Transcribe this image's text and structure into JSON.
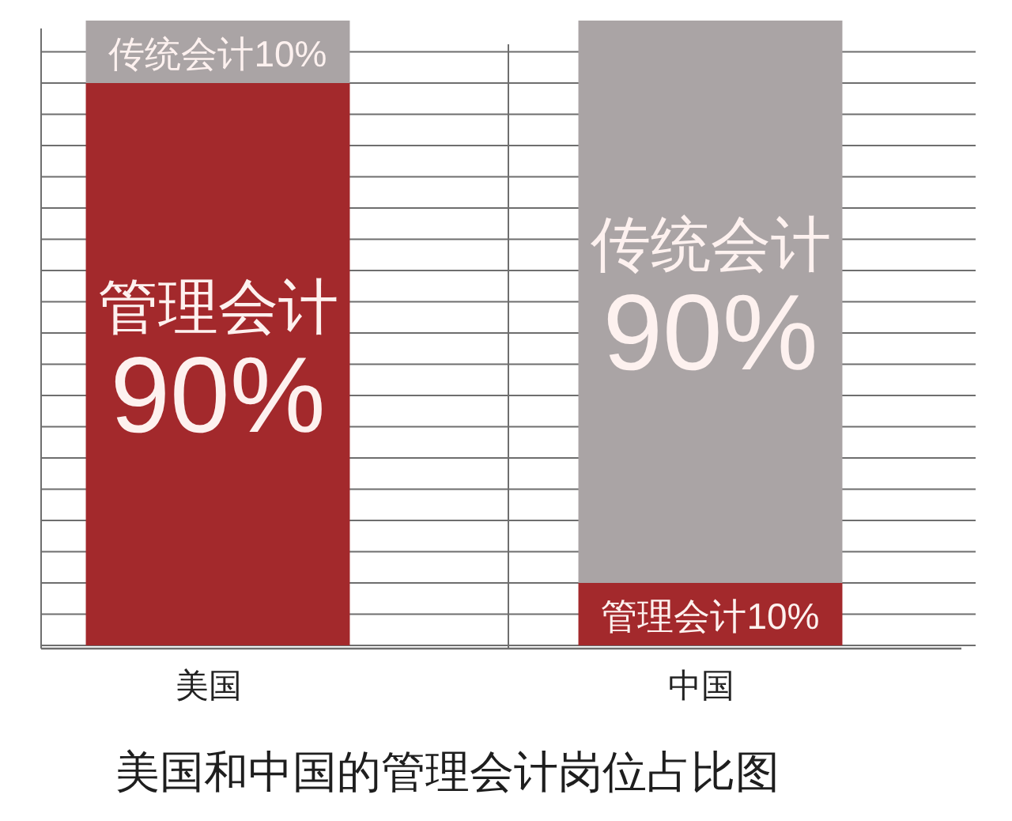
{
  "chart_data": {
    "type": "bar",
    "title": "美国和中国的管理会计岗位占比图",
    "categories": [
      "美国",
      "中国"
    ],
    "stacked": true,
    "series": [
      {
        "color": "#a3292c",
        "values": [
          90,
          10
        ],
        "value_labels": [
          "管理会计 90%",
          "管理会计10%"
        ]
      },
      {
        "color": "#aaa4a5",
        "values": [
          10,
          90
        ],
        "value_labels": [
          "传统会计10%",
          "传统会计 90%"
        ]
      }
    ],
    "ylim": [
      0,
      100
    ],
    "yticks": [
      {
        "value": 0,
        "label": null
      },
      {
        "value": 5,
        "label": null
      },
      {
        "value": 10,
        "label": null
      },
      {
        "value": 15,
        "label": null
      },
      {
        "value": 20,
        "label": null
      },
      {
        "value": 25,
        "label": null
      },
      {
        "value": 30,
        "label": null
      },
      {
        "value": 35,
        "label": null
      },
      {
        "value": 40,
        "label": null
      },
      {
        "value": 45,
        "label": null
      },
      {
        "value": 50,
        "label": null
      },
      {
        "value": 55,
        "label": null
      },
      {
        "value": 60,
        "label": null
      },
      {
        "value": 65,
        "label": null
      },
      {
        "value": 70,
        "label": null
      },
      {
        "value": 75,
        "label": null
      },
      {
        "value": 80,
        "label": null
      },
      {
        "value": 85,
        "label": null
      },
      {
        "value": 90,
        "label": null
      },
      {
        "value": 95,
        "label": null
      }
    ],
    "grid": true,
    "tick_labels": "x"
  }
}
